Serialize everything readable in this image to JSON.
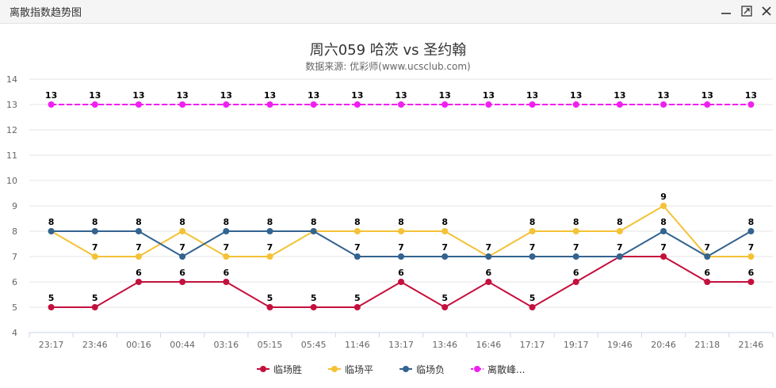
{
  "window": {
    "title": "离散指数趋势图"
  },
  "chart_data": {
    "type": "line",
    "title": "周六059 哈茨 vs 圣约翰",
    "subtitle": "数据来源: 优彩师(www.ucsclub.com)",
    "categories": [
      "23:17",
      "23:46",
      "00:16",
      "00:44",
      "03:16",
      "05:15",
      "05:45",
      "11:46",
      "13:17",
      "13:46",
      "16:46",
      "17:17",
      "19:17",
      "19:46",
      "20:46",
      "21:18",
      "21:46"
    ],
    "ylim": [
      4,
      14
    ],
    "yticks": [
      4,
      5,
      6,
      7,
      8,
      9,
      10,
      11,
      12,
      13,
      14
    ],
    "grid": true,
    "legend_position": "bottom",
    "series": [
      {
        "name": "临场胜",
        "color": "#c4103d",
        "dashed": false,
        "values": [
          5,
          5,
          6,
          6,
          6,
          5,
          5,
          5,
          6,
          5,
          6,
          5,
          6,
          7,
          7,
          6,
          6
        ]
      },
      {
        "name": "临场平",
        "color": "#f4c236",
        "dashed": false,
        "values": [
          8,
          7,
          7,
          8,
          7,
          7,
          8,
          8,
          8,
          8,
          7,
          8,
          8,
          8,
          9,
          7,
          7
        ]
      },
      {
        "name": "临场负",
        "color": "#33638f",
        "dashed": false,
        "values": [
          8,
          8,
          8,
          7,
          8,
          8,
          8,
          7,
          7,
          7,
          7,
          7,
          7,
          7,
          8,
          7,
          8
        ]
      },
      {
        "name": "离散峰值",
        "legend_label": "离散峰...",
        "color": "#f01ff0",
        "dashed": true,
        "values": [
          13,
          13,
          13,
          13,
          13,
          13,
          13,
          13,
          13,
          13,
          13,
          13,
          13,
          13,
          13,
          13,
          13
        ]
      }
    ]
  }
}
